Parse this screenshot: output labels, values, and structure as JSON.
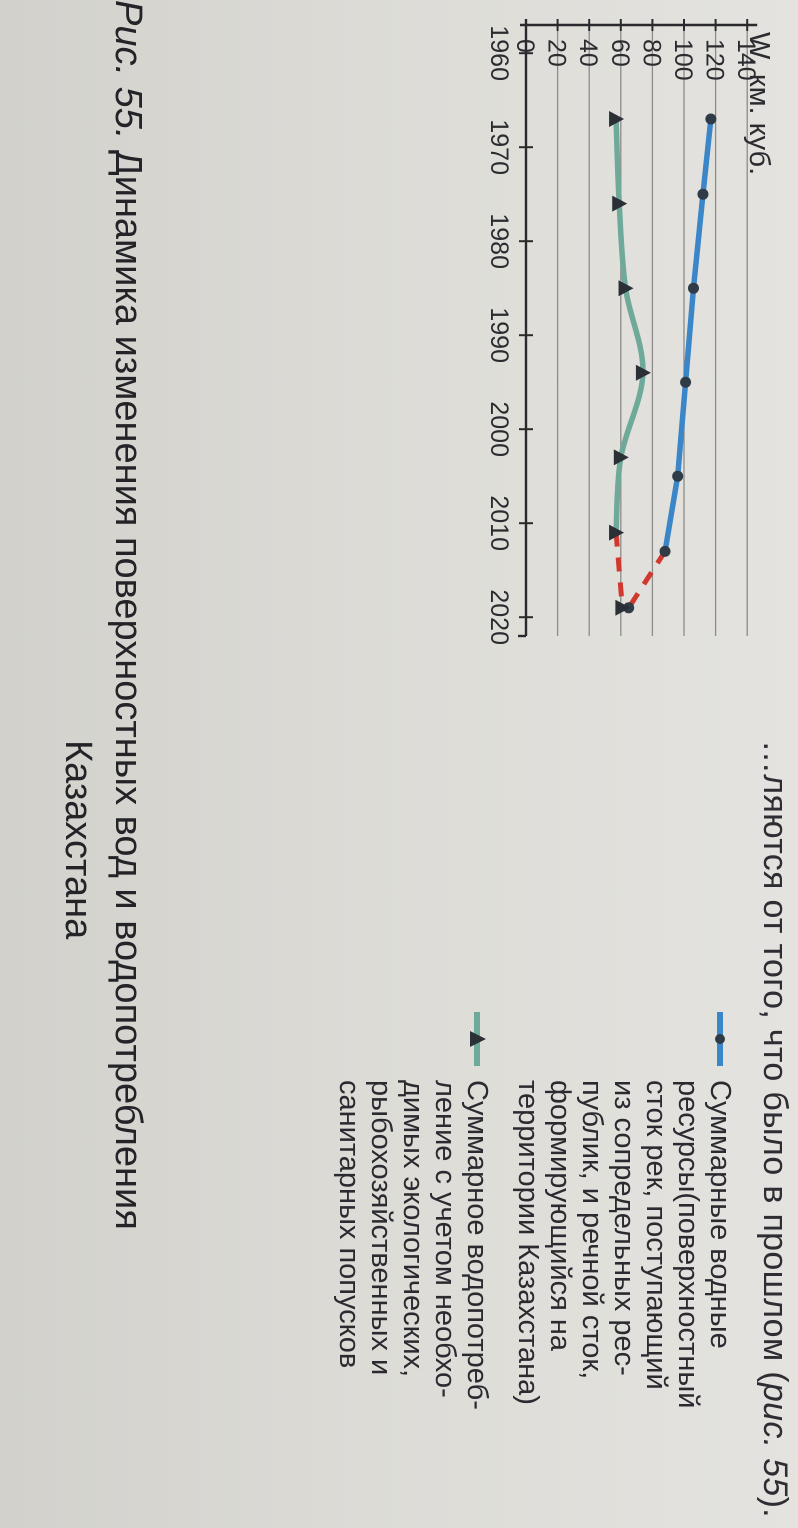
{
  "top_text": {
    "main": "…ляются от того, что было в прошлом (",
    "ref": "рис. 55",
    "tail": ")."
  },
  "chart_data": {
    "type": "line",
    "ylabel": "W, км. куб.",
    "xlim": [
      1957,
      2022
    ],
    "ylim": [
      0,
      140
    ],
    "x_ticks": [
      "1960",
      "1970",
      "1980",
      "1990",
      "2000",
      "2010",
      "2020"
    ],
    "y_ticks": [
      "0",
      "20",
      "40",
      "60",
      "80",
      "100",
      "120",
      "140"
    ],
    "grid": true,
    "series": [
      {
        "name": "Суммарные водные ресурсы(поверхностный сток рек, поступающий из сопредельных республик, и речной сток, формирующийся на территории Казахстана)",
        "color": "#3a86c8",
        "marker": "circle",
        "points": [
          {
            "x": 1967,
            "y": 117
          },
          {
            "x": 1975,
            "y": 112
          },
          {
            "x": 1985,
            "y": 106
          },
          {
            "x": 1995,
            "y": 101
          },
          {
            "x": 2005,
            "y": 96
          },
          {
            "x": 2013,
            "y": 88
          },
          {
            "x": 2019,
            "y": 65
          }
        ],
        "dashed_from_index": 5
      },
      {
        "name": "Суммарное водопотребление с учетом необходимых экологических, рыбохозяйственных и санитарных попусков",
        "color": "#6fa99a",
        "marker": "triangle",
        "points": [
          {
            "x": 1967,
            "y": 57
          },
          {
            "x": 1976,
            "y": 59
          },
          {
            "x": 1985,
            "y": 63
          },
          {
            "x": 1994,
            "y": 74
          },
          {
            "x": 2003,
            "y": 60
          },
          {
            "x": 2011,
            "y": 57
          },
          {
            "x": 2019,
            "y": 61
          }
        ],
        "dashed_from_index": 5
      }
    ],
    "dash_color": "#d03a2e",
    "legend_placement": "right",
    "legend": [
      {
        "lines": [
          "Суммарные водные",
          "ресурсы(поверхностный",
          "сток рек, поступающий",
          "из сопредельных рес-",
          "публик, и речной сток,",
          "формирующийся на",
          "территории Казахстана)"
        ]
      },
      {
        "lines": [
          "Суммарное водопотреб-",
          "ление с учетом необхо-",
          "димых экологических,",
          "рыбохозяйственных и",
          "санитарных попусков"
        ]
      }
    ]
  },
  "caption": {
    "prefix": "Рис. 55.",
    "line1": " Динамика изменения поверхностных вод и водопотребления",
    "line2": "Казахстана"
  }
}
